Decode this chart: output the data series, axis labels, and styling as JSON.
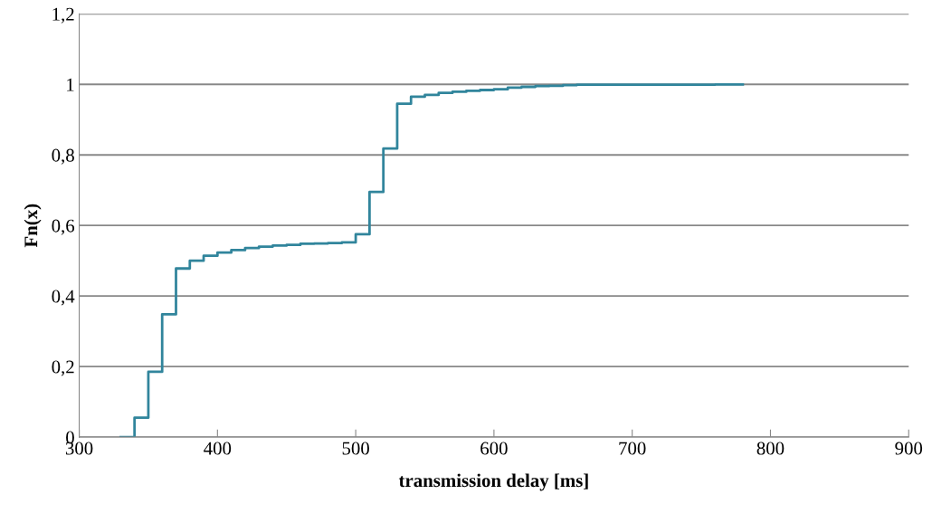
{
  "chart_data": {
    "type": "step",
    "xlabel": "transmission delay [ms]",
    "ylabel": "Fn(x)",
    "x": [
      330,
      340,
      350,
      360,
      370,
      380,
      390,
      400,
      410,
      420,
      430,
      440,
      450,
      460,
      470,
      480,
      490,
      500,
      510,
      520,
      530,
      540,
      550,
      560,
      570,
      580,
      590,
      600,
      610,
      620,
      630,
      640,
      650,
      660,
      670,
      680,
      690,
      700,
      710,
      720,
      730,
      740,
      750,
      760,
      770,
      780
    ],
    "series": [
      {
        "color": "#31859c",
        "values": [
          0,
          0.055,
          0.185,
          0.348,
          0.478,
          0.5,
          0.514,
          0.523,
          0.53,
          0.536,
          0.54,
          0.543,
          0.545,
          0.548,
          0.549,
          0.55,
          0.552,
          0.575,
          0.695,
          0.818,
          0.945,
          0.965,
          0.97,
          0.976,
          0.979,
          0.982,
          0.984,
          0.986,
          0.991,
          0.993,
          0.995,
          0.996,
          0.998,
          0.999,
          0.999,
          0.999,
          0.999,
          0.999,
          0.999,
          0.999,
          0.999,
          0.999,
          0.999,
          1,
          1,
          1
        ]
      }
    ],
    "xlim": [
      300,
      900
    ],
    "xticks": [
      300,
      400,
      500,
      600,
      700,
      800,
      900
    ],
    "ylim": [
      0,
      1.2
    ],
    "yticks": [
      {
        "value": 0,
        "label": "0"
      },
      {
        "value": 0.2,
        "label": "0,2"
      },
      {
        "value": 0.4,
        "label": "0,4"
      },
      {
        "value": 0.6,
        "label": "0,6"
      },
      {
        "value": 0.8,
        "label": "0,8"
      },
      {
        "value": 1,
        "label": "1"
      },
      {
        "value": 1.2,
        "label": "1,2"
      }
    ],
    "grid": "y",
    "legend": false,
    "line_style": "solid",
    "marker": "none"
  }
}
